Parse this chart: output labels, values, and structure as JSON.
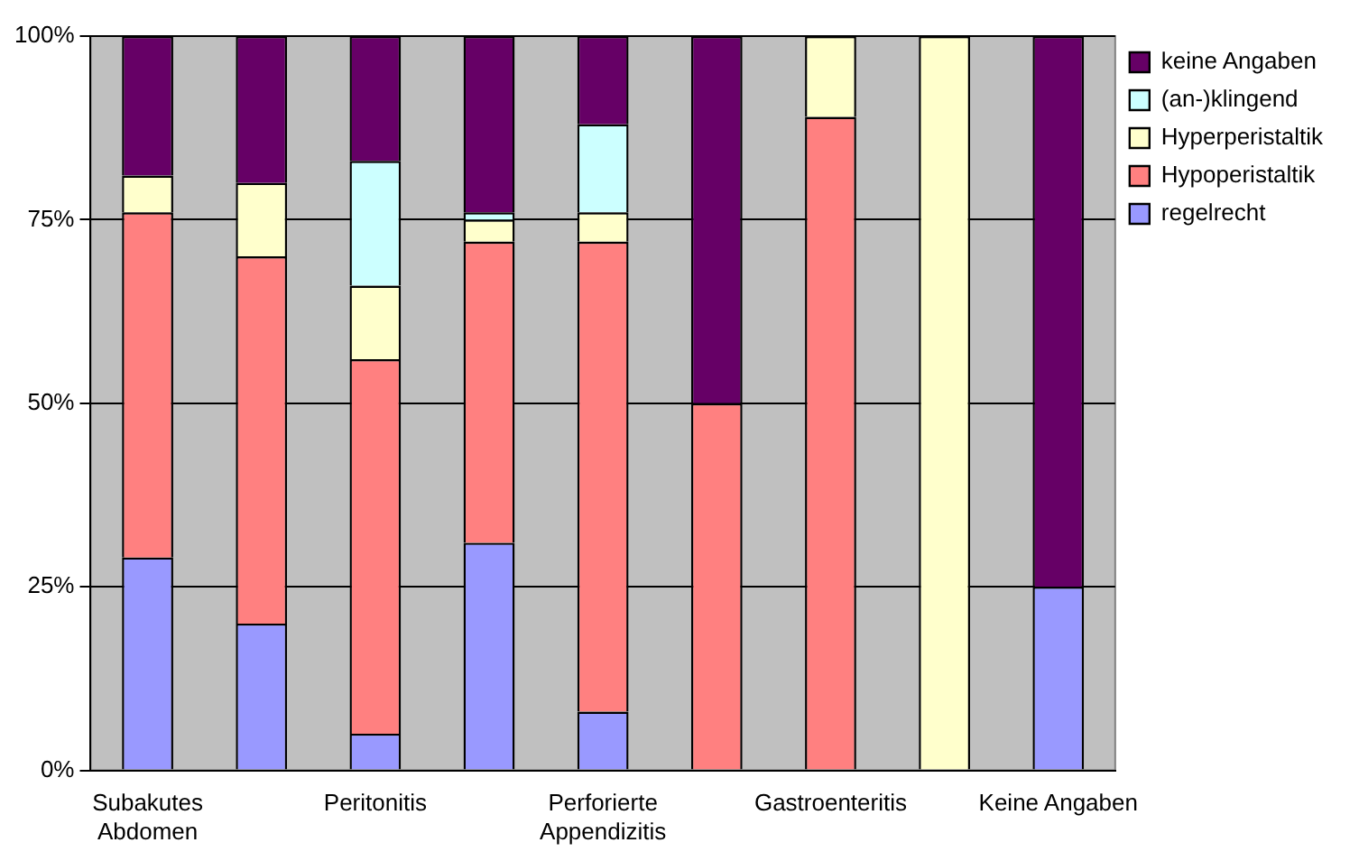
{
  "chart_data": {
    "type": "bar",
    "stacked": true,
    "categories": [
      "Subakutes Abdomen",
      null,
      "Peritonitis",
      null,
      "Perforierte Appendizitis",
      null,
      "Gastroenteritis",
      null,
      "Keine Angaben"
    ],
    "series": [
      {
        "name": "regelrecht",
        "color": "#9999ff",
        "values": [
          29,
          20,
          5,
          31,
          8,
          0,
          0,
          0,
          25
        ]
      },
      {
        "name": "Hypoperistaltik",
        "color": "#ff8080",
        "values": [
          47,
          50,
          51,
          41,
          64,
          50,
          89,
          0,
          0
        ]
      },
      {
        "name": "Hyperperistaltik",
        "color": "#ffffcc",
        "values": [
          5,
          10,
          10,
          3,
          4,
          0,
          11,
          100,
          0
        ]
      },
      {
        "name": "(an-)klingend",
        "color": "#ccffff",
        "values": [
          0,
          0,
          17,
          1,
          12,
          0,
          0,
          0,
          0
        ]
      },
      {
        "name": "keine Angaben",
        "color": "#660066",
        "values": [
          19,
          20,
          17,
          24,
          12,
          50,
          0,
          0,
          75
        ]
      }
    ],
    "ylim": [
      0,
      100
    ],
    "yticks": [
      {
        "value": 0,
        "label": "0%"
      },
      {
        "value": 25,
        "label": "25%"
      },
      {
        "value": 50,
        "label": "50%"
      },
      {
        "value": 75,
        "label": "75%"
      },
      {
        "value": 100,
        "label": "100%"
      }
    ],
    "grid": "y",
    "legend": "top right"
  }
}
